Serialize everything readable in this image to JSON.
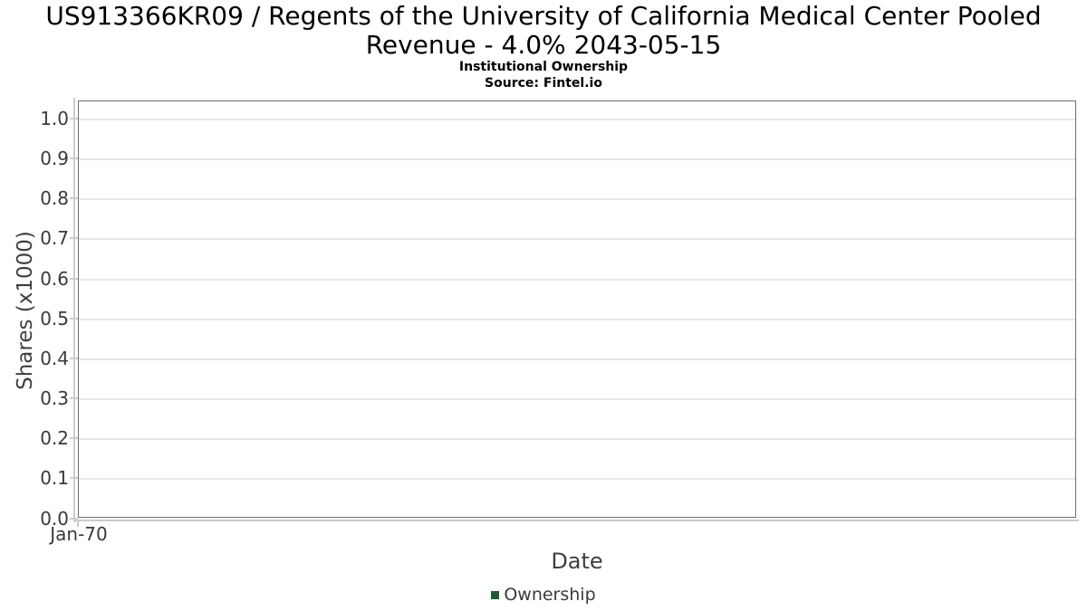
{
  "header": {
    "title_lines": [
      "US913366KR09 / Regents of the University of California Medical Center Pooled",
      "Revenue - 4.0% 2043-05-15"
    ],
    "subtitle": "Institutional Ownership",
    "source": "Source: Fintel.io"
  },
  "axes": {
    "x_label": "Date",
    "y_label": "Shares (x1000)",
    "y_ticks": [
      "1.0",
      "0.9",
      "0.8",
      "0.7",
      "0.6",
      "0.5",
      "0.4",
      "0.3",
      "0.2",
      "0.1",
      "0.0"
    ],
    "x_ticks": [
      "Jan-70"
    ]
  },
  "legend": {
    "items": [
      {
        "label": "Ownership",
        "color": "#1d5a33"
      }
    ]
  },
  "colors": {
    "plot_border": "#707070",
    "gridline": "#e7e7e7",
    "axis_line": "#cccccc",
    "tick_text": "#3a3a3a",
    "title_text": "#000000",
    "series_green": "#1d5a33"
  },
  "chart_data": {
    "type": "line",
    "title": "US913366KR09 / Regents of the University of California Medical Center Pooled Revenue - 4.0% 2043-05-15",
    "subtitle": "Institutional Ownership",
    "source": "Source: Fintel.io",
    "xlabel": "Date",
    "ylabel": "Shares (x1000)",
    "x_tick_labels": [
      "Jan-70"
    ],
    "y_tick_values": [
      0.0,
      0.1,
      0.2,
      0.3,
      0.4,
      0.5,
      0.6,
      0.7,
      0.8,
      0.9,
      1.0
    ],
    "ylim": [
      0.0,
      1.05
    ],
    "grid": "horizontal-only",
    "legend_position": "bottom-center",
    "series": [
      {
        "name": "Ownership",
        "color": "#1d5a33",
        "x": [],
        "values": []
      }
    ]
  }
}
